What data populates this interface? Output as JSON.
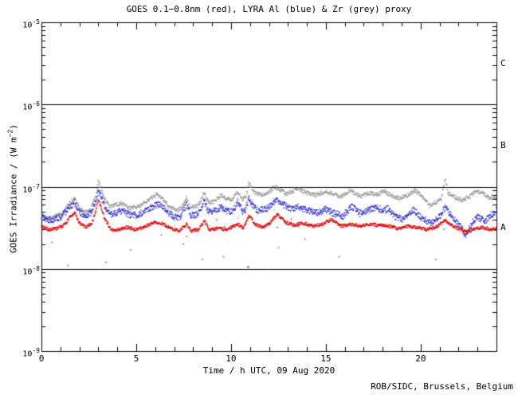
{
  "page": {
    "background": "#ffffff",
    "axis_color": "#000000"
  },
  "chart_data": {
    "type": "scatter",
    "title": "GOES 0.1−0.8nm (red), LYRA Al (blue) & Zr (grey) proxy",
    "xlabel": "Time / h UTC, 09 Aug 2020",
    "ylabel": {
      "text": "GOES Irradiance / (W m",
      "sup": "−2",
      "close": ")"
    },
    "footer": "ROB/SIDC, Brussels, Belgium",
    "x_range": [
      0,
      24
    ],
    "x_major_ticks": [
      0,
      5,
      10,
      15,
      20
    ],
    "x_minor_step": 1,
    "y_exponent_range": [
      -9,
      -5
    ],
    "y_tick_exponents": [
      -5,
      -6,
      -7,
      -8,
      -9
    ],
    "hline_values": [
      1e-06,
      1e-07,
      1e-08
    ],
    "flare_classes": [
      {
        "label": "C",
        "decade": [
          -6,
          -5
        ]
      },
      {
        "label": "B",
        "decade": [
          -7,
          -6
        ]
      },
      {
        "label": "A",
        "decade": [
          -8,
          -7
        ]
      }
    ],
    "grid": "off",
    "legend": "in-title",
    "series": [
      {
        "name": "LYRA Zr proxy",
        "color": "#9a9a9a",
        "band_scatter": 0.025,
        "stray_rate": 0.004,
        "keyframes": [
          [
            0,
            4.5e-08
          ],
          [
            0.3,
            4.1e-08
          ],
          [
            0.7,
            4.3e-08
          ],
          [
            1.1,
            4.6e-08
          ],
          [
            1.45,
            6.2e-08
          ],
          [
            1.75,
            7.2e-08
          ],
          [
            2.0,
            5.6e-08
          ],
          [
            2.3,
            4.8e-08
          ],
          [
            2.6,
            5.4e-08
          ],
          [
            2.85,
            7.5e-08
          ],
          [
            3.0,
            1.18e-07
          ],
          [
            3.1,
            1e-07
          ],
          [
            3.3,
            7.2e-08
          ],
          [
            3.6,
            5.8e-08
          ],
          [
            3.9,
            6e-08
          ],
          [
            4.2,
            6.3e-08
          ],
          [
            4.6,
            5.5e-08
          ],
          [
            5.0,
            5.6e-08
          ],
          [
            5.4,
            6.2e-08
          ],
          [
            5.8,
            7.3e-08
          ],
          [
            6.1,
            8e-08
          ],
          [
            6.4,
            7e-08
          ],
          [
            6.8,
            5.5e-08
          ],
          [
            7.2,
            5.1e-08
          ],
          [
            7.55,
            6.2e-08
          ],
          [
            7.65,
            7.6e-08
          ],
          [
            7.8,
            5.8e-08
          ],
          [
            8.1,
            5.6e-08
          ],
          [
            8.35,
            6.2e-08
          ],
          [
            8.6,
            8.6e-08
          ],
          [
            8.8,
            6.4e-08
          ],
          [
            9.1,
            6.6e-08
          ],
          [
            9.45,
            7.8e-08
          ],
          [
            9.75,
            7.2e-08
          ],
          [
            10.1,
            7e-08
          ],
          [
            10.35,
            8.8e-08
          ],
          [
            10.6,
            7e-08
          ],
          [
            10.8,
            7.6e-08
          ],
          [
            10.95,
            1.15e-07
          ],
          [
            11.1,
            9.2e-08
          ],
          [
            11.35,
            8.2e-08
          ],
          [
            11.7,
            8e-08
          ],
          [
            12.0,
            8.6e-08
          ],
          [
            12.3,
            1e-07
          ],
          [
            12.6,
            9.2e-08
          ],
          [
            12.9,
            8.2e-08
          ],
          [
            13.2,
            8.6e-08
          ],
          [
            13.5,
            9.6e-08
          ],
          [
            13.8,
            8.8e-08
          ],
          [
            14.1,
            8.2e-08
          ],
          [
            14.5,
            7.9e-08
          ],
          [
            15.0,
            8.8e-08
          ],
          [
            15.4,
            8.2e-08
          ],
          [
            15.8,
            7.6e-08
          ],
          [
            16.3,
            9e-08
          ],
          [
            16.8,
            7.6e-08
          ],
          [
            17.3,
            8.4e-08
          ],
          [
            17.7,
            8e-08
          ],
          [
            18.1,
            8.8e-08
          ],
          [
            18.5,
            7.7e-08
          ],
          [
            18.9,
            7.2e-08
          ],
          [
            19.3,
            7.8e-08
          ],
          [
            19.7,
            9e-08
          ],
          [
            20.1,
            7.6e-08
          ],
          [
            20.5,
            5.8e-08
          ],
          [
            20.8,
            6.4e-08
          ],
          [
            21.1,
            7.2e-08
          ],
          [
            21.3,
            1.28e-07
          ],
          [
            21.45,
            8.4e-08
          ],
          [
            21.8,
            7.4e-08
          ],
          [
            22.2,
            6.8e-08
          ],
          [
            22.6,
            7.6e-08
          ],
          [
            22.95,
            9e-08
          ],
          [
            23.3,
            8.2e-08
          ],
          [
            23.6,
            7.4e-08
          ],
          [
            24,
            7.6e-08
          ]
        ]
      },
      {
        "name": "LYRA Al proxy",
        "color": "#2323cc",
        "band_scatter": 0.04,
        "stray_rate": 0.006,
        "keyframes": [
          [
            0,
            4.3e-08
          ],
          [
            0.3,
            3.9e-08
          ],
          [
            0.7,
            4e-08
          ],
          [
            1.1,
            4.4e-08
          ],
          [
            1.45,
            5.6e-08
          ],
          [
            1.75,
            6.4e-08
          ],
          [
            2.0,
            4.9e-08
          ],
          [
            2.3,
            4.3e-08
          ],
          [
            2.6,
            4.8e-08
          ],
          [
            2.85,
            6.4e-08
          ],
          [
            3.0,
            8.8e-08
          ],
          [
            3.15,
            7.4e-08
          ],
          [
            3.35,
            5.6e-08
          ],
          [
            3.65,
            4.5e-08
          ],
          [
            3.95,
            4.8e-08
          ],
          [
            4.25,
            5.1e-08
          ],
          [
            4.6,
            4.6e-08
          ],
          [
            5.0,
            4.5e-08
          ],
          [
            5.4,
            4.9e-08
          ],
          [
            5.85,
            5.6e-08
          ],
          [
            6.15,
            6.1e-08
          ],
          [
            6.45,
            5.5e-08
          ],
          [
            6.85,
            4.5e-08
          ],
          [
            7.25,
            4.1e-08
          ],
          [
            7.65,
            6e-08
          ],
          [
            7.85,
            4.5e-08
          ],
          [
            8.15,
            4.5e-08
          ],
          [
            8.4,
            5e-08
          ],
          [
            8.6,
            7e-08
          ],
          [
            8.8,
            4.8e-08
          ],
          [
            9.1,
            5e-08
          ],
          [
            9.45,
            5.6e-08
          ],
          [
            9.8,
            5.1e-08
          ],
          [
            10.1,
            5e-08
          ],
          [
            10.35,
            6.6e-08
          ],
          [
            10.6,
            4.9e-08
          ],
          [
            10.8,
            5.4e-08
          ],
          [
            10.95,
            7.3e-08
          ],
          [
            11.15,
            5.8e-08
          ],
          [
            11.45,
            5.1e-08
          ],
          [
            11.8,
            5.3e-08
          ],
          [
            12.1,
            5.8e-08
          ],
          [
            12.45,
            6.9e-08
          ],
          [
            12.8,
            6e-08
          ],
          [
            13.15,
            5.3e-08
          ],
          [
            13.5,
            5.7e-08
          ],
          [
            13.85,
            5.3e-08
          ],
          [
            14.2,
            5e-08
          ],
          [
            14.6,
            4.8e-08
          ],
          [
            15.0,
            5.3e-08
          ],
          [
            15.45,
            4.7e-08
          ],
          [
            15.9,
            4.4e-08
          ],
          [
            16.35,
            5.7e-08
          ],
          [
            16.8,
            4.7e-08
          ],
          [
            17.25,
            5.2e-08
          ],
          [
            17.65,
            5.6e-08
          ],
          [
            18.05,
            5.1e-08
          ],
          [
            18.3,
            5.5e-08
          ],
          [
            18.65,
            4.3e-08
          ],
          [
            19.1,
            4e-08
          ],
          [
            19.6,
            5.3e-08
          ],
          [
            20.0,
            4.3e-08
          ],
          [
            20.5,
            3.6e-08
          ],
          [
            20.9,
            4e-08
          ],
          [
            21.3,
            5.6e-08
          ],
          [
            21.7,
            4.1e-08
          ],
          [
            22.1,
            3.3e-08
          ],
          [
            22.4,
            2.5e-08
          ],
          [
            22.7,
            3.6e-08
          ],
          [
            23.0,
            4.3e-08
          ],
          [
            23.4,
            3.8e-08
          ],
          [
            23.75,
            4.6e-08
          ],
          [
            24,
            5.1e-08
          ]
        ]
      },
      {
        "name": "GOES 0.1-0.8nm",
        "color": "#dd0000",
        "band_scatter": 0.02,
        "stray_rate": 0.001,
        "keyframes": [
          [
            0,
            3.3e-08
          ],
          [
            0.4,
            3e-08
          ],
          [
            0.8,
            3.1e-08
          ],
          [
            1.2,
            3.4e-08
          ],
          [
            1.5,
            4.2e-08
          ],
          [
            1.75,
            4.8e-08
          ],
          [
            2.0,
            3.6e-08
          ],
          [
            2.35,
            3.2e-08
          ],
          [
            2.65,
            3.6e-08
          ],
          [
            2.85,
            4.8e-08
          ],
          [
            3.0,
            7e-08
          ],
          [
            3.15,
            5.6e-08
          ],
          [
            3.35,
            4e-08
          ],
          [
            3.7,
            3e-08
          ],
          [
            4.1,
            3e-08
          ],
          [
            4.5,
            3.2e-08
          ],
          [
            5.0,
            3e-08
          ],
          [
            5.5,
            3.3e-08
          ],
          [
            6.0,
            3.7e-08
          ],
          [
            6.4,
            3.5e-08
          ],
          [
            6.8,
            3.1e-08
          ],
          [
            7.25,
            2.9e-08
          ],
          [
            7.65,
            3.5e-08
          ],
          [
            7.9,
            2.9e-08
          ],
          [
            8.3,
            3e-08
          ],
          [
            8.6,
            3.9e-08
          ],
          [
            8.85,
            3e-08
          ],
          [
            9.3,
            3.1e-08
          ],
          [
            9.8,
            3e-08
          ],
          [
            10.35,
            3.5e-08
          ],
          [
            10.65,
            3.1e-08
          ],
          [
            10.95,
            4.5e-08
          ],
          [
            11.25,
            3.5e-08
          ],
          [
            11.65,
            3.2e-08
          ],
          [
            12.05,
            3.6e-08
          ],
          [
            12.45,
            4.6e-08
          ],
          [
            12.85,
            3.7e-08
          ],
          [
            13.3,
            3.4e-08
          ],
          [
            13.8,
            3.6e-08
          ],
          [
            14.3,
            3.3e-08
          ],
          [
            14.8,
            3.5e-08
          ],
          [
            15.3,
            4e-08
          ],
          [
            15.8,
            3.3e-08
          ],
          [
            16.3,
            3.5e-08
          ],
          [
            16.8,
            3.3e-08
          ],
          [
            17.3,
            3.5e-08
          ],
          [
            17.8,
            3.4e-08
          ],
          [
            18.3,
            3.3e-08
          ],
          [
            18.8,
            3.1e-08
          ],
          [
            19.3,
            3.3e-08
          ],
          [
            19.8,
            3.2e-08
          ],
          [
            20.3,
            3e-08
          ],
          [
            20.8,
            3.2e-08
          ],
          [
            21.3,
            3.9e-08
          ],
          [
            21.7,
            3.3e-08
          ],
          [
            22.1,
            3e-08
          ],
          [
            22.45,
            2.8e-08
          ],
          [
            22.9,
            3.1e-08
          ],
          [
            23.3,
            3.2e-08
          ],
          [
            23.65,
            3e-08
          ],
          [
            24,
            3.1e-08
          ]
        ]
      }
    ],
    "outliers": [
      {
        "color": "#9a9a9a",
        "x": 0.55,
        "v": 2.1e-08
      },
      {
        "color": "#9a9a9a",
        "x": 1.4,
        "v": 1.1e-08
      },
      {
        "color": "#9a9a9a",
        "x": 3.4,
        "v": 1.2e-08
      },
      {
        "color": "#9a9a9a",
        "x": 4.7,
        "v": 1.7e-08
      },
      {
        "color": "#9a9a9a",
        "x": 8.5,
        "v": 1.3e-08
      },
      {
        "color": "#9a9a9a",
        "x": 9.6,
        "v": 1.4e-08
      },
      {
        "color": "#2323cc",
        "x": 10.9,
        "v": 1.05e-08
      },
      {
        "color": "#9a9a9a",
        "x": 12.5,
        "v": 1.8e-08
      },
      {
        "color": "#9a9a9a",
        "x": 13.9,
        "v": 2.3e-08
      },
      {
        "color": "#9a9a9a",
        "x": 15.7,
        "v": 1.4e-08
      },
      {
        "color": "#9a9a9a",
        "x": 20.8,
        "v": 1.3e-08
      }
    ]
  }
}
